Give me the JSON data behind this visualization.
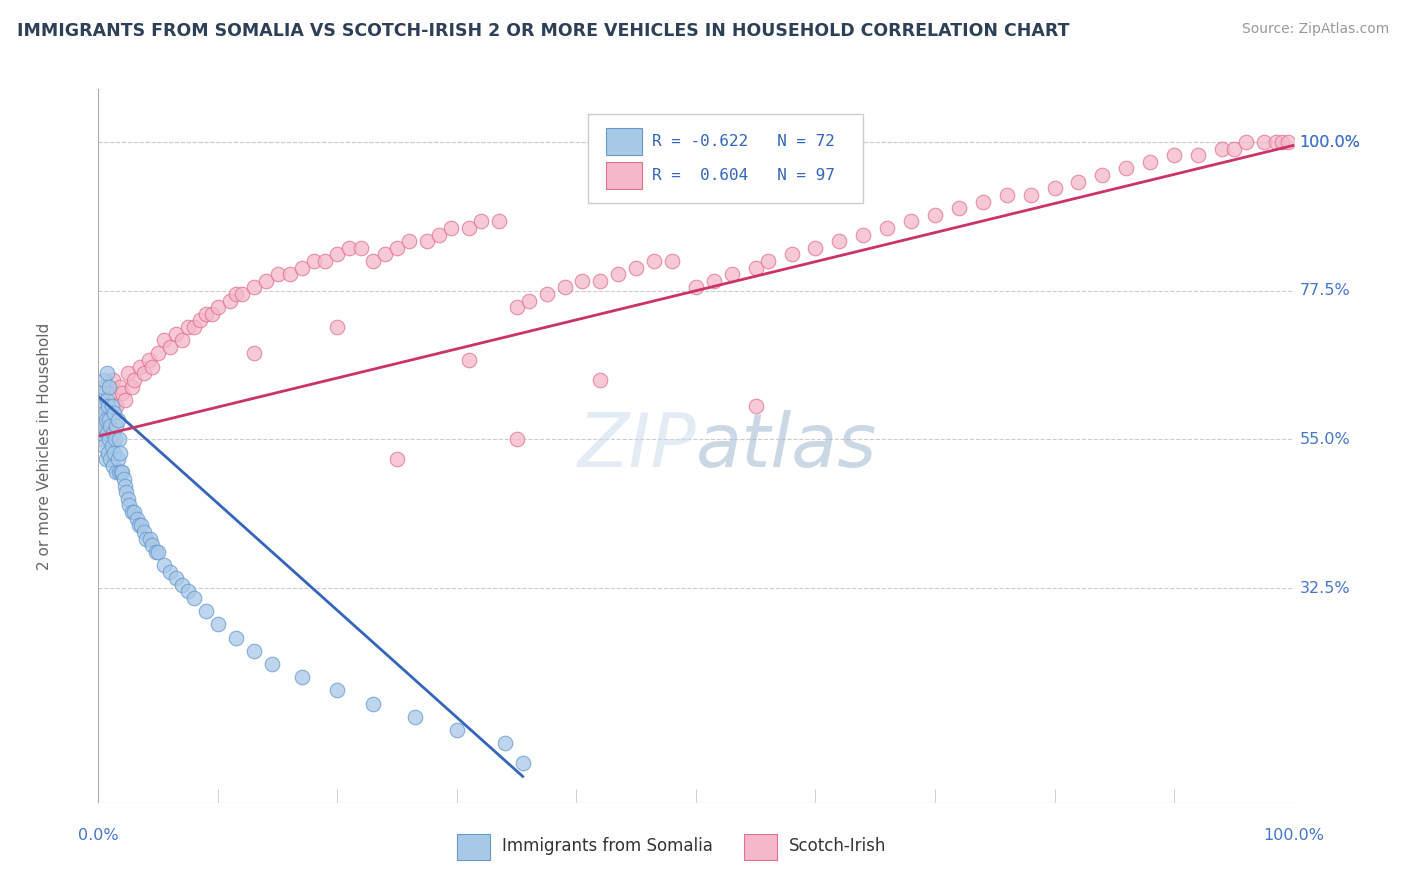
{
  "title": "IMMIGRANTS FROM SOMALIA VS SCOTCH-IRISH 2 OR MORE VEHICLES IN HOUSEHOLD CORRELATION CHART",
  "source": "Source: ZipAtlas.com",
  "ylabel": "2 or more Vehicles in Household",
  "ytick_labels": [
    "100.0%",
    "77.5%",
    "55.0%",
    "32.5%"
  ],
  "ytick_values": [
    1.0,
    0.775,
    0.55,
    0.325
  ],
  "xtick_values": [
    0.0,
    0.1,
    0.2,
    0.3,
    0.4,
    0.5,
    0.6,
    0.7,
    0.8,
    0.9,
    1.0
  ],
  "xlim": [
    0.0,
    1.0
  ],
  "ylim": [
    0.0,
    1.08
  ],
  "legend_blue_label": "Immigrants from Somalia",
  "legend_pink_label": "Scotch-Irish",
  "title_color": "#2e4057",
  "source_color": "#999999",
  "blue_color": "#a8c8e8",
  "pink_color": "#f4b8c8",
  "blue_edge": "#6699cc",
  "pink_edge": "#e07090",
  "trend_blue": "#3366bb",
  "trend_pink": "#cc3366",
  "grid_color": "#cccccc",
  "axis_label_color": "#4477cc",
  "blue_trend_x0": 0.0,
  "blue_trend_y0": 0.615,
  "blue_trend_x1": 0.355,
  "blue_trend_y1": 0.04,
  "pink_trend_x0": 0.0,
  "pink_trend_y0": 0.555,
  "pink_trend_x1": 1.0,
  "pink_trend_y1": 0.995,
  "blue_scatter_x": [
    0.001,
    0.001,
    0.002,
    0.003,
    0.003,
    0.004,
    0.004,
    0.005,
    0.005,
    0.005,
    0.006,
    0.006,
    0.007,
    0.007,
    0.007,
    0.008,
    0.008,
    0.009,
    0.009,
    0.009,
    0.01,
    0.01,
    0.011,
    0.011,
    0.012,
    0.012,
    0.013,
    0.013,
    0.014,
    0.015,
    0.015,
    0.016,
    0.016,
    0.017,
    0.017,
    0.018,
    0.019,
    0.02,
    0.021,
    0.022,
    0.023,
    0.025,
    0.026,
    0.028,
    0.03,
    0.032,
    0.034,
    0.036,
    0.038,
    0.04,
    0.043,
    0.045,
    0.048,
    0.05,
    0.055,
    0.06,
    0.065,
    0.07,
    0.075,
    0.08,
    0.09,
    0.1,
    0.115,
    0.13,
    0.145,
    0.17,
    0.2,
    0.23,
    0.265,
    0.3,
    0.34,
    0.355
  ],
  "blue_scatter_y": [
    0.56,
    0.6,
    0.58,
    0.55,
    0.62,
    0.57,
    0.63,
    0.54,
    0.59,
    0.64,
    0.52,
    0.58,
    0.56,
    0.61,
    0.65,
    0.53,
    0.6,
    0.55,
    0.58,
    0.63,
    0.52,
    0.57,
    0.54,
    0.6,
    0.51,
    0.56,
    0.53,
    0.59,
    0.55,
    0.5,
    0.57,
    0.52,
    0.58,
    0.5,
    0.55,
    0.53,
    0.5,
    0.5,
    0.49,
    0.48,
    0.47,
    0.46,
    0.45,
    0.44,
    0.44,
    0.43,
    0.42,
    0.42,
    0.41,
    0.4,
    0.4,
    0.39,
    0.38,
    0.38,
    0.36,
    0.35,
    0.34,
    0.33,
    0.32,
    0.31,
    0.29,
    0.27,
    0.25,
    0.23,
    0.21,
    0.19,
    0.17,
    0.15,
    0.13,
    0.11,
    0.09,
    0.06
  ],
  "pink_scatter_x": [
    0.002,
    0.005,
    0.007,
    0.01,
    0.012,
    0.015,
    0.018,
    0.02,
    0.022,
    0.025,
    0.028,
    0.03,
    0.035,
    0.038,
    0.042,
    0.045,
    0.05,
    0.055,
    0.06,
    0.065,
    0.07,
    0.075,
    0.08,
    0.085,
    0.09,
    0.095,
    0.1,
    0.11,
    0.115,
    0.12,
    0.13,
    0.14,
    0.15,
    0.16,
    0.17,
    0.18,
    0.19,
    0.2,
    0.21,
    0.22,
    0.23,
    0.24,
    0.25,
    0.26,
    0.275,
    0.285,
    0.295,
    0.31,
    0.32,
    0.335,
    0.35,
    0.36,
    0.375,
    0.39,
    0.405,
    0.42,
    0.435,
    0.45,
    0.465,
    0.48,
    0.5,
    0.515,
    0.53,
    0.55,
    0.56,
    0.58,
    0.6,
    0.62,
    0.64,
    0.66,
    0.68,
    0.7,
    0.72,
    0.74,
    0.76,
    0.78,
    0.8,
    0.82,
    0.84,
    0.86,
    0.88,
    0.9,
    0.92,
    0.94,
    0.95,
    0.96,
    0.975,
    0.985,
    0.99,
    0.995,
    0.13,
    0.2,
    0.31,
    0.42,
    0.55,
    0.35,
    0.25
  ],
  "pink_scatter_y": [
    0.56,
    0.6,
    0.58,
    0.62,
    0.64,
    0.6,
    0.63,
    0.62,
    0.61,
    0.65,
    0.63,
    0.64,
    0.66,
    0.65,
    0.67,
    0.66,
    0.68,
    0.7,
    0.69,
    0.71,
    0.7,
    0.72,
    0.72,
    0.73,
    0.74,
    0.74,
    0.75,
    0.76,
    0.77,
    0.77,
    0.78,
    0.79,
    0.8,
    0.8,
    0.81,
    0.82,
    0.82,
    0.83,
    0.84,
    0.84,
    0.82,
    0.83,
    0.84,
    0.85,
    0.85,
    0.86,
    0.87,
    0.87,
    0.88,
    0.88,
    0.75,
    0.76,
    0.77,
    0.78,
    0.79,
    0.79,
    0.8,
    0.81,
    0.82,
    0.82,
    0.78,
    0.79,
    0.8,
    0.81,
    0.82,
    0.83,
    0.84,
    0.85,
    0.86,
    0.87,
    0.88,
    0.89,
    0.9,
    0.91,
    0.92,
    0.92,
    0.93,
    0.94,
    0.95,
    0.96,
    0.97,
    0.98,
    0.98,
    0.99,
    0.99,
    1.0,
    1.0,
    1.0,
    1.0,
    1.0,
    0.68,
    0.72,
    0.67,
    0.64,
    0.6,
    0.55,
    0.52
  ]
}
